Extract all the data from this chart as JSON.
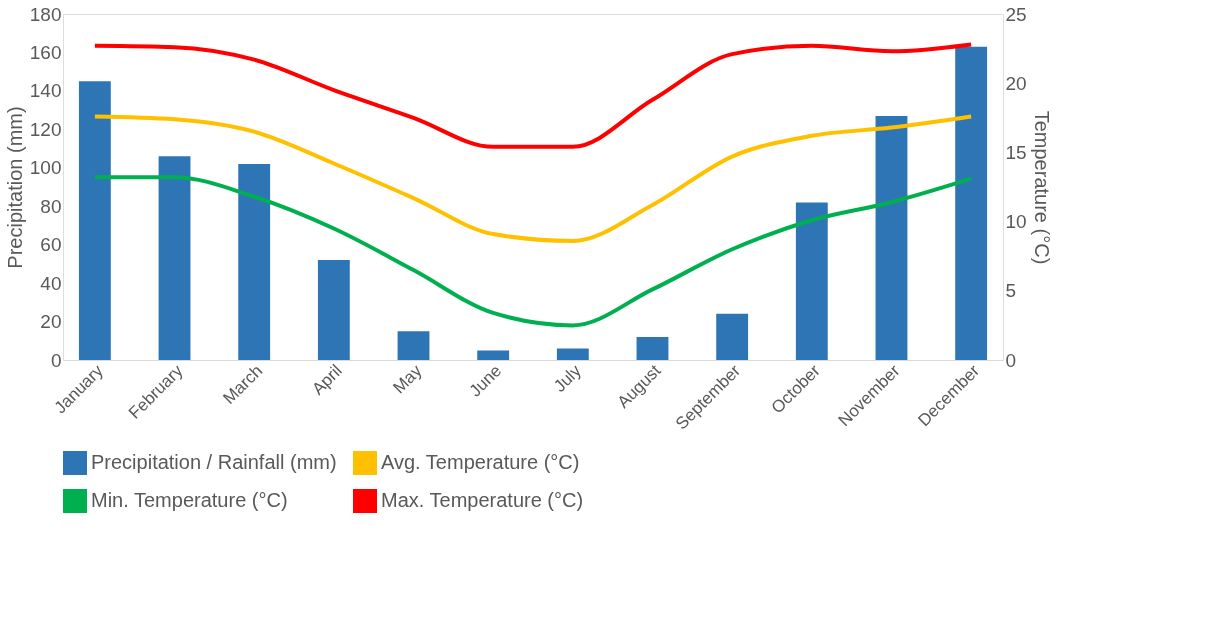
{
  "chart_data": {
    "type": "bar",
    "ylabel": "Precipitation (mm)",
    "y2label": "Temperature (°C)",
    "categories": [
      "January",
      "February",
      "March",
      "April",
      "May",
      "June",
      "July",
      "August",
      "September",
      "October",
      "November",
      "December"
    ],
    "series": [
      {
        "name": "Precipitation / Rainfall (mm)",
        "color": "#2e75b6",
        "values": [
          145,
          106,
          102,
          52,
          15,
          5,
          6,
          12,
          24,
          82,
          127,
          163
        ]
      },
      {
        "name": "Avg. Temperature (°C)",
        "type": "line",
        "axis": "y2",
        "color": "#ffc000",
        "values": [
          17.6,
          17.4,
          16.5,
          14.2,
          11.7,
          9.1,
          8.6,
          11.2,
          14.7,
          16.2,
          16.8,
          17.6
        ]
      },
      {
        "name": "Min. Temperature (°C)",
        "type": "line",
        "axis": "y2",
        "color": "#00b050",
        "values": [
          13.2,
          13.2,
          11.8,
          9.5,
          6.5,
          3.4,
          2.5,
          5.1,
          8.0,
          10.1,
          11.4,
          13.1
        ]
      },
      {
        "name": "Max. Temperature (°C)",
        "type": "line",
        "axis": "y2",
        "color": "#ff0000",
        "values": [
          22.7,
          22.6,
          21.7,
          19.5,
          17.5,
          15.4,
          15.4,
          18.8,
          22.1,
          22.7,
          22.3,
          22.8
        ]
      }
    ],
    "ylim": [
      0,
      180
    ],
    "yticks": [
      0,
      20,
      40,
      60,
      80,
      100,
      120,
      140,
      160,
      180
    ],
    "y2lim": [
      0,
      25
    ],
    "y2ticks": [
      0,
      5,
      10,
      15,
      20,
      25
    ],
    "grid": false,
    "legend": "bottom",
    "line_style": "solid",
    "marker": "none"
  }
}
